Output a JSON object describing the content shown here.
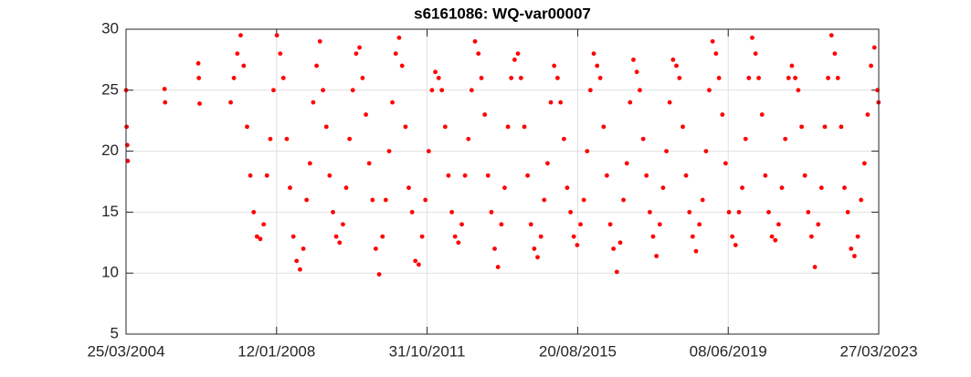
{
  "chart_data": {
    "type": "scatter",
    "title": "s6161086: WQ-var00007",
    "color": "#ff0000",
    "grid": true,
    "xlim": [
      "25/03/2004",
      "27/03/2023"
    ],
    "xticks": [
      "25/03/2004",
      "12/01/2008",
      "31/10/2011",
      "20/08/2015",
      "08/06/2019",
      "27/03/2023"
    ],
    "ylim": [
      5,
      30
    ],
    "yticks": [
      5,
      10,
      15,
      20,
      25,
      30
    ],
    "x": [
      "25/03/2004",
      "30/03/2004",
      "05/04/2004",
      "10/04/2004",
      "15/03/2005",
      "20/03/2005",
      "20/01/2006",
      "25/01/2006",
      "01/02/2006",
      "15/11/2006",
      "15/12/2006",
      "15/01/2007",
      "15/02/2007",
      "15/03/2007",
      "15/04/2007",
      "15/05/2007",
      "15/06/2007",
      "15/07/2007",
      "15/08/2007",
      "15/09/2007",
      "15/10/2007",
      "15/11/2007",
      "15/12/2007",
      "15/01/2008",
      "15/02/2008",
      "15/03/2008",
      "15/04/2008",
      "15/05/2008",
      "15/06/2008",
      "15/07/2008",
      "15/08/2008",
      "15/09/2008",
      "15/10/2008",
      "15/11/2008",
      "15/12/2008",
      "15/01/2009",
      "15/02/2009",
      "15/03/2009",
      "15/04/2009",
      "15/05/2009",
      "15/06/2009",
      "15/07/2009",
      "15/08/2009",
      "15/09/2009",
      "15/10/2009",
      "15/11/2009",
      "15/12/2009",
      "15/01/2010",
      "15/02/2010",
      "15/03/2010",
      "15/04/2010",
      "15/05/2010",
      "15/06/2010",
      "15/07/2010",
      "15/08/2010",
      "15/09/2010",
      "15/10/2010",
      "15/11/2010",
      "15/12/2010",
      "15/01/2011",
      "15/02/2011",
      "15/03/2011",
      "15/04/2011",
      "15/05/2011",
      "15/06/2011",
      "15/07/2011",
      "15/08/2011",
      "15/09/2011",
      "15/10/2011",
      "15/11/2011",
      "15/12/2011",
      "15/01/2012",
      "15/02/2012",
      "15/03/2012",
      "15/04/2012",
      "15/05/2012",
      "15/06/2012",
      "15/07/2012",
      "15/08/2012",
      "15/09/2012",
      "15/10/2012",
      "15/11/2012",
      "15/12/2012",
      "15/01/2013",
      "15/02/2013",
      "15/03/2013",
      "15/04/2013",
      "15/05/2013",
      "15/06/2013",
      "15/07/2013",
      "15/08/2013",
      "15/09/2013",
      "15/10/2013",
      "15/11/2013",
      "15/12/2013",
      "15/01/2014",
      "15/02/2014",
      "15/03/2014",
      "15/04/2014",
      "15/05/2014",
      "15/06/2014",
      "15/07/2014",
      "15/08/2014",
      "15/09/2014",
      "15/10/2014",
      "15/11/2014",
      "15/12/2014",
      "15/01/2015",
      "15/02/2015",
      "15/03/2015",
      "15/04/2015",
      "15/05/2015",
      "15/06/2015",
      "15/07/2015",
      "15/08/2015",
      "15/09/2015",
      "15/10/2015",
      "15/11/2015",
      "15/12/2015",
      "15/01/2016",
      "15/02/2016",
      "15/03/2016",
      "15/04/2016",
      "15/05/2016",
      "15/06/2016",
      "15/07/2016",
      "15/08/2016",
      "15/09/2016",
      "15/10/2016",
      "15/11/2016",
      "15/12/2016",
      "15/01/2017",
      "15/02/2017",
      "15/03/2017",
      "15/04/2017",
      "15/05/2017",
      "15/06/2017",
      "15/07/2017",
      "15/08/2017",
      "15/09/2017",
      "15/10/2017",
      "15/11/2017",
      "15/12/2017",
      "15/01/2018",
      "15/02/2018",
      "15/03/2018",
      "15/04/2018",
      "15/05/2018",
      "15/06/2018",
      "15/07/2018",
      "15/08/2018",
      "15/09/2018",
      "15/10/2018",
      "15/11/2018",
      "15/12/2018",
      "15/01/2019",
      "15/02/2019",
      "15/03/2019",
      "15/04/2019",
      "15/05/2019",
      "15/06/2019",
      "15/07/2019",
      "15/08/2019",
      "15/09/2019",
      "15/10/2019",
      "15/11/2019",
      "15/12/2019",
      "15/01/2020",
      "15/02/2020",
      "15/03/2020",
      "15/04/2020",
      "15/05/2020",
      "15/06/2020",
      "15/07/2020",
      "15/08/2020",
      "15/09/2020",
      "15/10/2020",
      "15/11/2020",
      "15/12/2020",
      "15/01/2021",
      "15/02/2021",
      "15/03/2021",
      "15/04/2021",
      "15/05/2021",
      "15/06/2021",
      "15/07/2021",
      "15/08/2021",
      "15/09/2021",
      "15/10/2021",
      "15/11/2021",
      "15/12/2021",
      "15/01/2022",
      "15/02/2022",
      "15/03/2022",
      "15/04/2022",
      "15/05/2022",
      "15/06/2022",
      "15/07/2022",
      "15/08/2022",
      "15/09/2022",
      "15/10/2022",
      "15/11/2022",
      "15/12/2022",
      "15/01/2023",
      "15/02/2023",
      "15/03/2023",
      "25/03/2023"
    ],
    "values": [
      25,
      22,
      20.5,
      19.2,
      25.1,
      24,
      27.2,
      26,
      23.9,
      24,
      26,
      28,
      29.5,
      27,
      22,
      18,
      15,
      13,
      12.8,
      14,
      18,
      21,
      25,
      29.5,
      28,
      26,
      21,
      17,
      13,
      11,
      10.3,
      12,
      16,
      19,
      24,
      27,
      29,
      25,
      22,
      18,
      15,
      13,
      12.5,
      14,
      17,
      21,
      25,
      28,
      28.5,
      26,
      23,
      19,
      16,
      12,
      9.9,
      13,
      16,
      20,
      24,
      28,
      29.3,
      27,
      22,
      17,
      15,
      11,
      10.7,
      13,
      16,
      20,
      25,
      26.5,
      26,
      25,
      22,
      18,
      15,
      13,
      12.5,
      14,
      18,
      21,
      25,
      29,
      28,
      26,
      23,
      18,
      15,
      12,
      10.5,
      14,
      17,
      22,
      26,
      27.5,
      28,
      26,
      22,
      18,
      14,
      12,
      11.3,
      13,
      16,
      19,
      24,
      27,
      26,
      24,
      21,
      17,
      15,
      13,
      12.3,
      14,
      16,
      20,
      25,
      28,
      27,
      26,
      22,
      18,
      14,
      12,
      10.1,
      12.5,
      16,
      19,
      24,
      27.5,
      26.5,
      25,
      21,
      18,
      15,
      13,
      11.4,
      14,
      17,
      20,
      24,
      27.5,
      27,
      26,
      22,
      18,
      15,
      13,
      11.8,
      14,
      16,
      20,
      25,
      29,
      28,
      26,
      23,
      19,
      15,
      13,
      12.3,
      15,
      17,
      21,
      26,
      29.3,
      28,
      26,
      23,
      18,
      15,
      13,
      12.7,
      14,
      17,
      21,
      26,
      27,
      26,
      25,
      22,
      18,
      15,
      13,
      10.5,
      14,
      17,
      22,
      26,
      29.5,
      28,
      26,
      22,
      17,
      15,
      12,
      11.4,
      13,
      16,
      19,
      23,
      27,
      28.5,
      25,
      24
    ]
  }
}
